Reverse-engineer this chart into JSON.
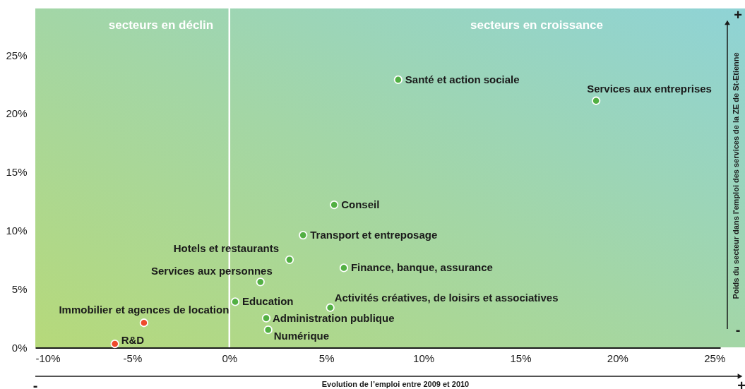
{
  "chart_data": {
    "type": "scatter",
    "xlabel": "Evolution de l’emploi entre 2009 et 2010",
    "ylabel": "Poids du secteur dans l'emploi des services de la ZE de St-Etienne",
    "series": [
      {
        "color": "#52b043",
        "x": [
          8.7,
          18.9,
          5.4,
          3.8,
          3.1,
          5.9,
          1.6,
          0.3,
          5.2,
          1.9,
          2.0
        ],
        "values": [
          22.9,
          21.1,
          12.2,
          9.6,
          7.5,
          6.8,
          5.6,
          3.9,
          3.4,
          2.5,
          1.5
        ]
      },
      {
        "color": "#ee4a2c",
        "x": [
          -4.4,
          -5.9
        ],
        "values": [
          2.1,
          0.3
        ]
      }
    ],
    "xlim": [
      -10,
      25.3
    ],
    "ylim": [
      0,
      29
    ],
    "xticks": [
      {
        "value": -10,
        "label": "-10%"
      },
      {
        "value": -5,
        "label": "-5%"
      },
      {
        "value": 0,
        "label": "0%"
      },
      {
        "value": 5,
        "label": "5%"
      },
      {
        "value": 10,
        "label": "10%"
      },
      {
        "value": 15,
        "label": "15%"
      },
      {
        "value": 20,
        "label": "20%"
      },
      {
        "value": 25,
        "label": "25%"
      }
    ],
    "yticks": [
      {
        "value": 0,
        "label": "0%"
      },
      {
        "value": 5,
        "label": "5%"
      },
      {
        "value": 10,
        "label": "10%"
      },
      {
        "value": 15,
        "label": "15%"
      },
      {
        "value": 20,
        "label": "20%"
      },
      {
        "value": 25,
        "label": "25%"
      }
    ],
    "ref_lines": [
      {
        "axis": "x",
        "value": 0,
        "color": "#ffffff"
      }
    ],
    "annotations": [
      "secteurs  en déclin",
      "secteurs  en croissance",
      {
        "text": "Santé et action sociale",
        "x": 8.7,
        "y": 22.9
      },
      {
        "text": "Services aux entreprises",
        "x": 18.9,
        "y": 21.1
      },
      {
        "text": "Conseil",
        "x": 5.4,
        "y": 12.2
      },
      {
        "text": "Transport et entreposage",
        "x": 3.8,
        "y": 9.6
      },
      {
        "text": "Hotels et restaurants",
        "x": 3.1,
        "y": 7.5
      },
      {
        "text": "Finance, banque, assurance",
        "x": 5.9,
        "y": 6.8
      },
      {
        "text": "Services aux personnes",
        "x": 1.6,
        "y": 5.6
      },
      {
        "text": "Education",
        "x": 0.3,
        "y": 3.9
      },
      {
        "text": "Activités créatives, de loisirs et associatives",
        "x": 5.2,
        "y": 3.4
      },
      {
        "text": "Administration publique",
        "x": 1.9,
        "y": 2.5
      },
      {
        "text": "Numérique",
        "x": 2.0,
        "y": 1.5
      },
      {
        "text": "Immobilier et agences de location",
        "x": -4.4,
        "y": 2.1
      },
      {
        "text": "R&D",
        "x": -5.9,
        "y": 0.3
      },
      "+",
      "-",
      "-",
      "+"
    ],
    "marker": "circle"
  }
}
